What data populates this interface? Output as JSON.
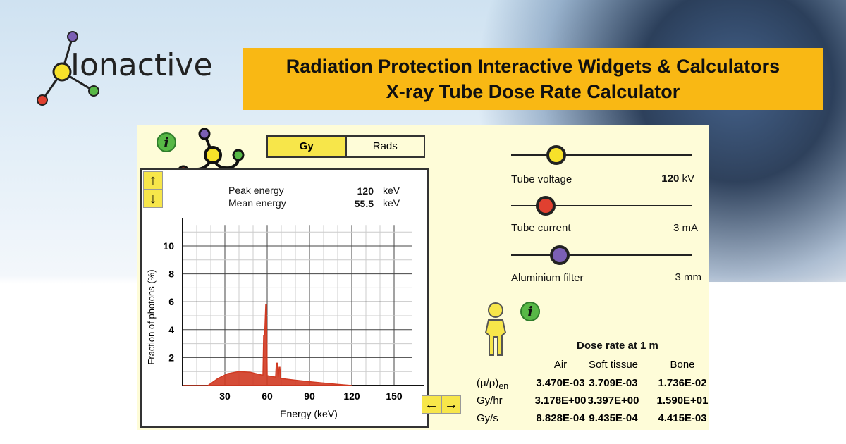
{
  "logo": {
    "text": "Ionactive"
  },
  "banner": {
    "line1": "Radiation Protection Interactive Widgets & Calculators",
    "line2": "X-ray Tube Dose Rate Calculator"
  },
  "units": {
    "options": [
      "Gy",
      "Rads"
    ],
    "selected": "Gy"
  },
  "energy": {
    "peak_label": "Peak energy",
    "peak_value": "120",
    "peak_unit": "keV",
    "mean_label": "Mean energy",
    "mean_value": "55.5",
    "mean_unit": "keV"
  },
  "controls": [
    {
      "label": "Tube voltage",
      "value": "120",
      "unit": "kV",
      "color": "#f7e12a",
      "position": 0.25
    },
    {
      "label": "Tube current",
      "value": "3",
      "unit": "mA",
      "color": "#e04030",
      "position": 0.19
    },
    {
      "label": "Aluminium filter",
      "value": "3",
      "unit": "mm",
      "color": "#7b5fb5",
      "position": 0.27
    }
  ],
  "dose": {
    "title": "Dose rate at 1 m",
    "columns": [
      "Air",
      "Soft tissue",
      "Bone"
    ],
    "rows": [
      {
        "label": "(μ/ρ)",
        "sub": "en",
        "values": [
          "3.470E-03",
          "3.709E-03",
          "1.736E-02"
        ]
      },
      {
        "label": "Gy/hr",
        "sub": "",
        "values": [
          "3.178E+00",
          "3.397E+00",
          "1.590E+01"
        ]
      },
      {
        "label": "Gy/s",
        "sub": "",
        "values": [
          "8.828E-04",
          "9.435E-04",
          "4.415E-03"
        ]
      }
    ]
  },
  "chart_data": {
    "type": "area",
    "xlabel": "Energy (keV)",
    "ylabel": "Fraction of photons (%)",
    "xlim": [
      0,
      170
    ],
    "ylim": [
      0,
      12
    ],
    "xticks": [
      30,
      60,
      90,
      120,
      150
    ],
    "yticks": [
      2,
      4,
      6,
      8,
      10
    ],
    "grid": true,
    "series": [
      {
        "color": "#d03a22",
        "x": [
          0,
          18,
          25,
          32,
          40,
          48,
          56,
          57,
          57.5,
          58.2,
          59,
          59.5,
          60,
          66,
          66.5,
          67.2,
          67.8,
          68.5,
          69,
          69.5,
          70,
          80,
          90,
          100,
          110,
          120
        ],
        "y": [
          0,
          0,
          0.5,
          0.85,
          1.0,
          0.95,
          0.75,
          0.75,
          3.6,
          3.6,
          5.8,
          5.8,
          0.7,
          0.6,
          1.6,
          1.6,
          0.6,
          1.3,
          1.3,
          0.5,
          0.5,
          0.38,
          0.27,
          0.18,
          0.08,
          0
        ]
      }
    ]
  }
}
